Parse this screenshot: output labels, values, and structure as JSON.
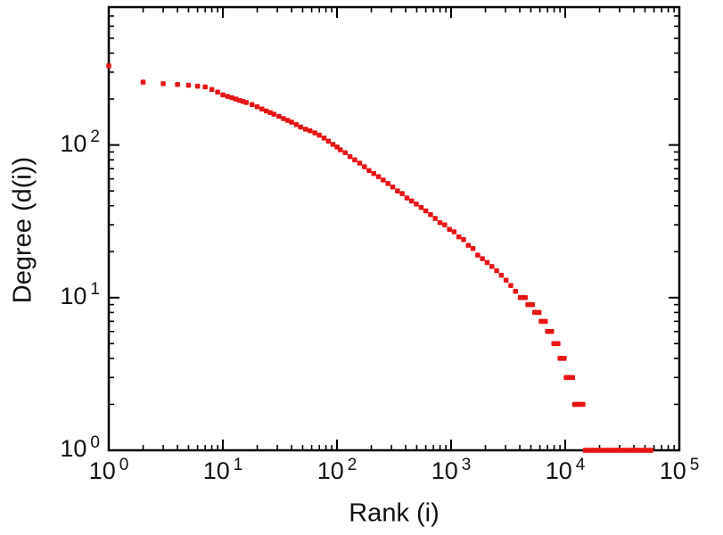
{
  "chart_data": {
    "type": "scatter",
    "title": "",
    "xlabel": "Rank (i)",
    "ylabel": "Degree (d(i))",
    "x_scale": "log",
    "y_scale": "log",
    "xlim": [
      1,
      100000
    ],
    "ylim": [
      1,
      800
    ],
    "tick_base": "10",
    "x_tick_exponents": [
      0,
      1,
      2,
      3,
      4,
      5
    ],
    "y_tick_exponents": [
      0,
      1,
      2
    ],
    "grid": false,
    "legend": "none",
    "marker_color": "#e81414",
    "axis_color": "#000000",
    "background_color": "#ffffff",
    "points": [
      [
        1,
        330
      ],
      [
        2,
        258
      ],
      [
        3,
        252
      ],
      [
        4,
        249
      ],
      [
        5,
        246
      ],
      [
        6,
        243
      ],
      [
        7,
        240
      ],
      [
        8,
        231
      ],
      [
        9,
        222
      ],
      [
        10,
        213
      ],
      [
        11,
        208
      ],
      [
        12,
        204
      ],
      [
        13,
        200
      ],
      [
        14,
        196
      ],
      [
        15,
        193
      ],
      [
        16,
        190
      ],
      [
        18,
        184
      ],
      [
        20,
        178
      ],
      [
        22,
        172
      ],
      [
        24,
        167
      ],
      [
        26,
        163
      ],
      [
        28,
        159
      ],
      [
        31,
        154
      ],
      [
        34,
        149
      ],
      [
        37,
        145
      ],
      [
        40,
        141
      ],
      [
        44,
        136
      ],
      [
        48,
        131
      ],
      [
        53,
        127
      ],
      [
        58,
        124
      ],
      [
        64,
        120
      ],
      [
        70,
        116
      ],
      [
        77,
        111
      ],
      [
        84,
        106
      ],
      [
        92,
        101
      ],
      [
        100,
        97
      ],
      [
        107,
        93
      ],
      [
        118,
        89
      ],
      [
        130,
        84
      ],
      [
        143,
        80
      ],
      [
        158,
        76
      ],
      [
        174,
        72
      ],
      [
        191,
        68
      ],
      [
        210,
        65
      ],
      [
        231,
        62
      ],
      [
        254,
        59
      ],
      [
        280,
        56
      ],
      [
        308,
        53
      ],
      [
        339,
        50
      ],
      [
        373,
        48
      ],
      [
        410,
        45
      ],
      [
        451,
        43
      ],
      [
        496,
        41
      ],
      [
        546,
        39
      ],
      [
        600,
        37
      ],
      [
        660,
        35
      ],
      [
        726,
        33
      ],
      [
        799,
        31
      ],
      [
        879,
        30
      ],
      [
        967,
        28
      ],
      [
        1063,
        27
      ],
      [
        1169,
        25
      ],
      [
        1286,
        24
      ],
      [
        1415,
        22
      ],
      [
        1556,
        21
      ],
      [
        1712,
        19
      ],
      [
        1883,
        18
      ],
      [
        2071,
        17
      ],
      [
        2278,
        16
      ],
      [
        2506,
        15
      ],
      [
        2757,
        14
      ],
      [
        3033,
        13
      ],
      [
        3336,
        12
      ],
      [
        3670,
        11
      ],
      [
        4040,
        10
      ],
      [
        4250,
        10
      ],
      [
        4470,
        10
      ],
      [
        4700,
        9
      ],
      [
        4930,
        9
      ],
      [
        5160,
        9
      ],
      [
        5400,
        8
      ],
      [
        5650,
        8
      ],
      [
        5900,
        8
      ],
      [
        6150,
        7
      ],
      [
        6420,
        7
      ],
      [
        6700,
        7
      ],
      [
        7000,
        6
      ],
      [
        7300,
        6
      ],
      [
        7600,
        6
      ],
      [
        7950,
        5
      ],
      [
        8300,
        5
      ],
      [
        8650,
        5
      ],
      [
        9000,
        4
      ],
      [
        9400,
        4
      ],
      [
        9800,
        4
      ],
      [
        10200,
        3
      ],
      [
        10650,
        3
      ],
      [
        11100,
        3
      ],
      [
        11600,
        3
      ],
      [
        12100,
        2
      ],
      [
        12600,
        2
      ],
      [
        13100,
        2
      ],
      [
        13700,
        2
      ],
      [
        14300,
        2
      ],
      [
        15000,
        1
      ],
      [
        15800,
        1
      ],
      [
        16600,
        1
      ],
      [
        17400,
        1
      ],
      [
        18300,
        1
      ],
      [
        19200,
        1
      ],
      [
        20200,
        1
      ],
      [
        21200,
        1
      ],
      [
        22300,
        1
      ],
      [
        23400,
        1
      ],
      [
        24600,
        1
      ],
      [
        25800,
        1
      ],
      [
        27100,
        1
      ],
      [
        28500,
        1
      ],
      [
        29900,
        1
      ],
      [
        31400,
        1
      ],
      [
        33000,
        1
      ],
      [
        34700,
        1
      ],
      [
        36400,
        1
      ],
      [
        38200,
        1
      ],
      [
        40100,
        1
      ],
      [
        42100,
        1
      ],
      [
        44200,
        1
      ],
      [
        46400,
        1
      ],
      [
        48700,
        1
      ],
      [
        51100,
        1
      ],
      [
        53700,
        1
      ],
      [
        56400,
        1
      ]
    ]
  }
}
